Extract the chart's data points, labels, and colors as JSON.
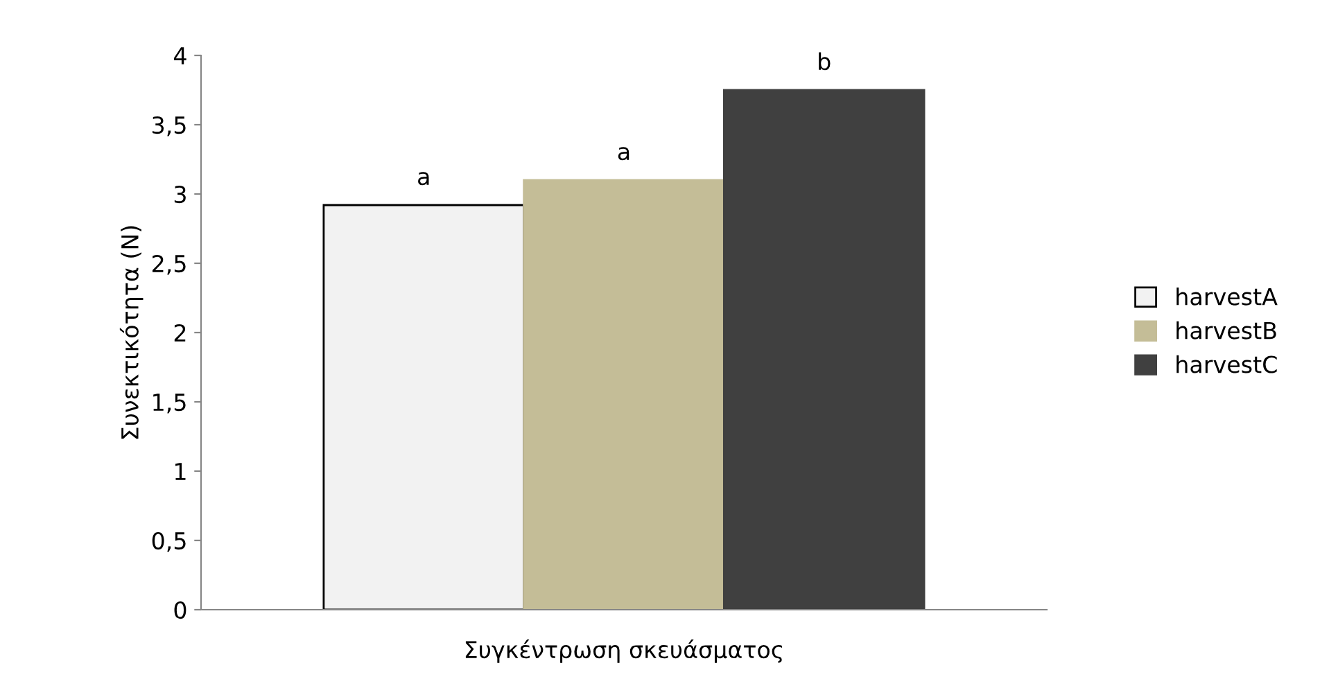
{
  "chart_data": {
    "type": "bar",
    "xlabel": "Συγκέντρωση σκευάσματος",
    "ylabel": "Συνεκτικότητα (N)",
    "categories": [
      null
    ],
    "series": [
      {
        "name": "harvestA",
        "color": "#f2f2f2",
        "values": [
          2.92
        ],
        "value_labels": [
          "a"
        ]
      },
      {
        "name": "harvestB",
        "color": "#c4bd97",
        "values": [
          3.1
        ],
        "value_labels": [
          "a"
        ]
      },
      {
        "name": "harvestC",
        "color": "#404040",
        "values": [
          3.75
        ],
        "value_labels": [
          "b"
        ]
      }
    ],
    "ylim": [
      0,
      4
    ],
    "yticks": [
      0,
      {
        "value": 0.5,
        "label": "0,5"
      },
      1,
      {
        "value": 1.5,
        "label": "1,5"
      },
      2,
      {
        "value": 2.5,
        "label": "2,5"
      },
      3,
      {
        "value": 3.5,
        "label": "3,5"
      },
      4
    ],
    "grid": false,
    "legend": "right"
  }
}
